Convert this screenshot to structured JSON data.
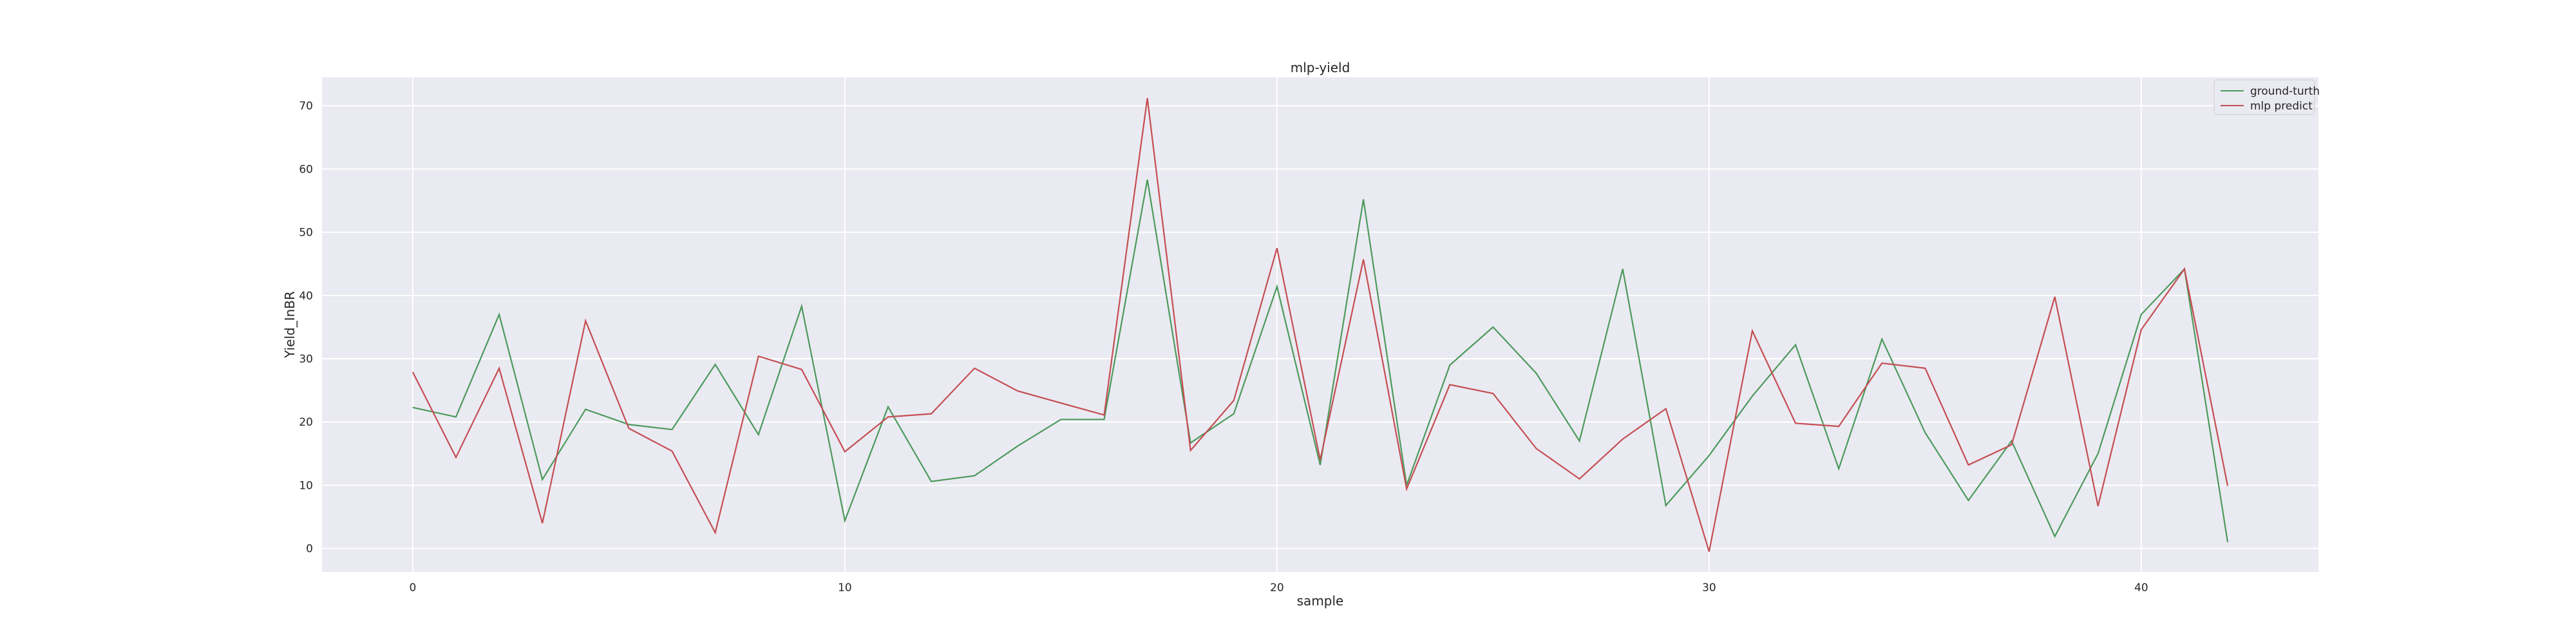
{
  "chart_data": {
    "type": "line",
    "title": "mlp-yield",
    "xlabel": "sample",
    "ylabel": "Yield_InBR",
    "xlim": [
      -2.1,
      44.1
    ],
    "ylim": [
      -3.7,
      74.5
    ],
    "xticks": [
      0,
      10,
      20,
      30,
      40
    ],
    "yticks": [
      0,
      10,
      20,
      30,
      40,
      50,
      60,
      70
    ],
    "grid": true,
    "legend_position": "top-right",
    "x": [
      0,
      1,
      2,
      3,
      4,
      5,
      6,
      7,
      8,
      9,
      10,
      11,
      12,
      13,
      14,
      15,
      16,
      17,
      18,
      19,
      20,
      21,
      22,
      23,
      24,
      25,
      26,
      27,
      28,
      29,
      30,
      31,
      32,
      33,
      34,
      35,
      36,
      37,
      38,
      39,
      40,
      41,
      42
    ],
    "series": [
      {
        "name": "ground-turth",
        "color": "#4c9a5c",
        "values": [
          22.3,
          20.8,
          37.0,
          10.9,
          22.0,
          19.6,
          18.8,
          29.1,
          18.0,
          38.3,
          4.4,
          22.4,
          10.6,
          11.5,
          16.2,
          20.4,
          20.4,
          58.3,
          16.7,
          21.3,
          41.4,
          13.2,
          55.2,
          10.0,
          29.0,
          35.0,
          27.7,
          17.0,
          44.2,
          6.8,
          14.7,
          24.1,
          32.2,
          12.6,
          33.1,
          18.3,
          7.6,
          17.0,
          1.9,
          15.0,
          37.0,
          44.2,
          1.0
        ]
      },
      {
        "name": "mlp predict",
        "color": "#c44e52",
        "values": [
          27.9,
          14.4,
          28.5,
          4.0,
          36.0,
          19.0,
          15.4,
          2.5,
          30.4,
          28.3,
          15.3,
          20.8,
          21.3,
          28.5,
          24.9,
          23.0,
          21.1,
          71.2,
          15.5,
          23.4,
          47.5,
          14.0,
          45.7,
          9.4,
          25.9,
          24.5,
          15.8,
          11.0,
          17.3,
          22.1,
          -0.5,
          34.4,
          19.8,
          19.3,
          29.3,
          28.5,
          13.2,
          16.4,
          39.8,
          6.7,
          34.6,
          44.2,
          9.9
        ]
      }
    ]
  }
}
